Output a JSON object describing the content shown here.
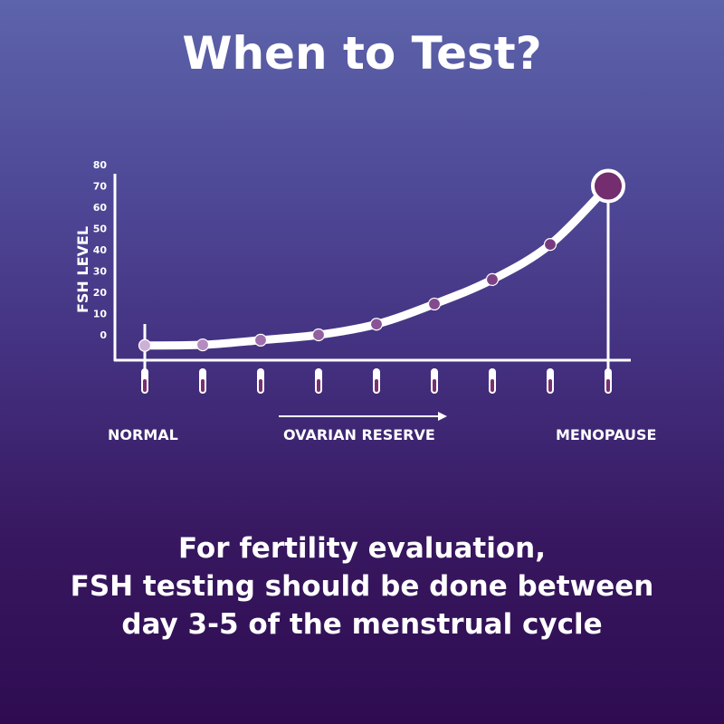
{
  "title": "When to Test?",
  "chart_data": {
    "type": "line",
    "ylabel": "FSH LEVEL",
    "yticks": [
      "0",
      "10",
      "20",
      "30",
      "40",
      "50",
      "60",
      "70",
      "80"
    ],
    "ylim": [
      -12,
      80
    ],
    "x": [
      1,
      2,
      3,
      4,
      5,
      6,
      7,
      8,
      9
    ],
    "values": [
      -5,
      -4.7,
      -2.5,
      0,
      5,
      14.5,
      26,
      42.5,
      70
    ],
    "annotations": {
      "start": "NORMAL",
      "middle": "OVARIAN RESERVE",
      "end": "MENOPAUSE"
    },
    "point_colors": [
      "#cdb0d6",
      "#b48cc0",
      "#9f70ac",
      "#93609f",
      "#8a5396",
      "#844a8e",
      "#7d4286",
      "#773a7f",
      "#742d6e"
    ],
    "line_color": "#ffffff",
    "grid": false
  },
  "footer": {
    "line1": "For fertility evaluation,",
    "line2": "FSH testing should be done between",
    "line3": "day 3-5 of the menstrual cycle"
  }
}
